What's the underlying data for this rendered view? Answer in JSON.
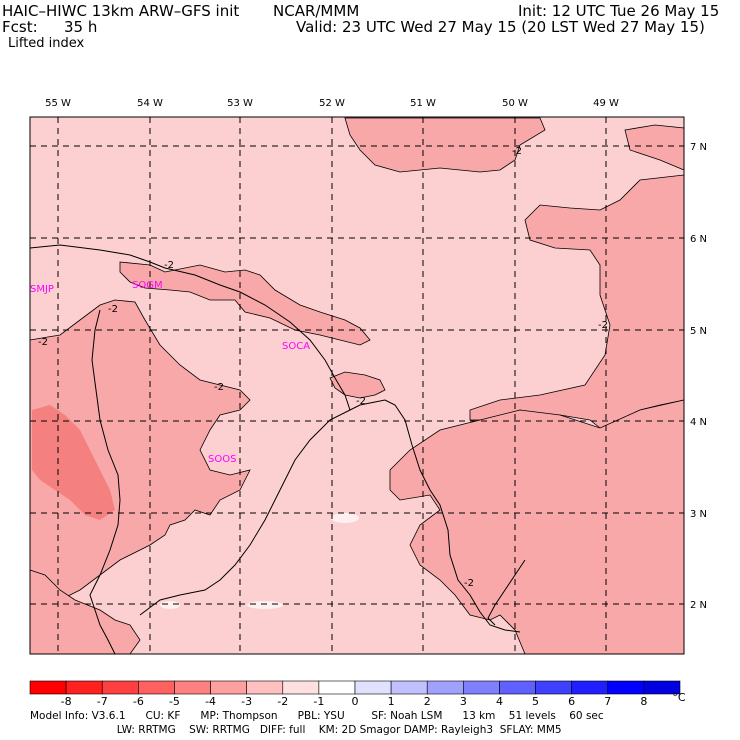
{
  "header": {
    "model": "HAIC–HIWC 13km ARW–GFS init",
    "center": "NCAR/MMM",
    "init": "Init: 12 UTC Tue 26 May 15",
    "fcst_label": "Fcst:",
    "fcst_value": "35 h",
    "valid": "Valid: 23 UTC Wed 27 May 15 (20 LST Wed 27 May 15)",
    "field": "Lifted index"
  },
  "map": {
    "longitude_labels": [
      "55 W",
      "54 W",
      "53 W",
      "52 W",
      "51 W",
      "50 W",
      "49 W"
    ],
    "latitude_labels": [
      "7 N",
      "6 N",
      "5 N",
      "4 N",
      "3 N",
      "2 N"
    ],
    "stations": [
      "SMJP",
      "SOGM",
      "SOCA",
      "SOOS"
    ],
    "contour_label": "-2",
    "colors": {
      "fill_minus1_0": "#fcd0d0",
      "fill_minus2_minus1": "#f8a8a8",
      "fill_minus3_minus2": "#f48080"
    }
  },
  "colorbar": {
    "labels": [
      "-8",
      "-7",
      "-6",
      "-5",
      "-4",
      "-3",
      "-2",
      "-1",
      "0",
      "1",
      "2",
      "3",
      "4",
      "5",
      "6",
      "7",
      "8"
    ],
    "unit": "°C",
    "colors": [
      "#ff0000",
      "#ff2020",
      "#ff4040",
      "#ff6060",
      "#ff8080",
      "#ffa0a0",
      "#ffc0c0",
      "#ffe0e0",
      "#ffffff",
      "#e0e0ff",
      "#c0c0ff",
      "#a0a0ff",
      "#8080ff",
      "#6060ff",
      "#4040ff",
      "#2020ff",
      "#0000ff",
      "#0000e0"
    ]
  },
  "footer": {
    "line1": "Model Info: V3.6.1      CU: KF      MP: Thompson      PBL: YSU        SF: Noah LSM      13 km    51 levels    60 sec",
    "line2": "                          LW: RRTMG    SW: RRTMG   DIFF: full    KM: 2D Smagor DAMP: Rayleigh3  SFLAY: MM5"
  }
}
